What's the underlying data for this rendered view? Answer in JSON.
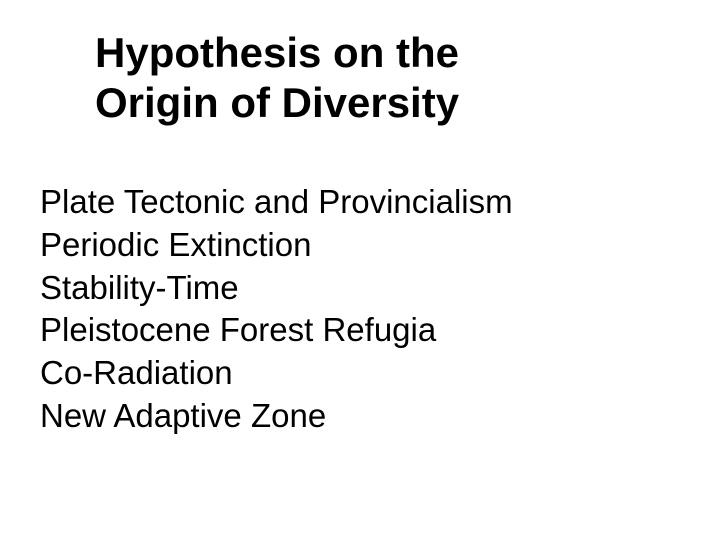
{
  "slide": {
    "title_line1": "Hypothesis on the",
    "title_line2": "Origin of Diversity",
    "items": [
      "Plate Tectonic and Provincialism",
      "Periodic Extinction",
      "Stability-Time",
      "Pleistocene Forest Refugia",
      "Co-Radiation",
      "New Adaptive Zone"
    ]
  },
  "styling": {
    "background_color": "#ffffff",
    "text_color": "#000000",
    "title_fontsize": 42,
    "title_fontweight": "bold",
    "body_fontsize": 33,
    "font_family": "Verdana"
  }
}
